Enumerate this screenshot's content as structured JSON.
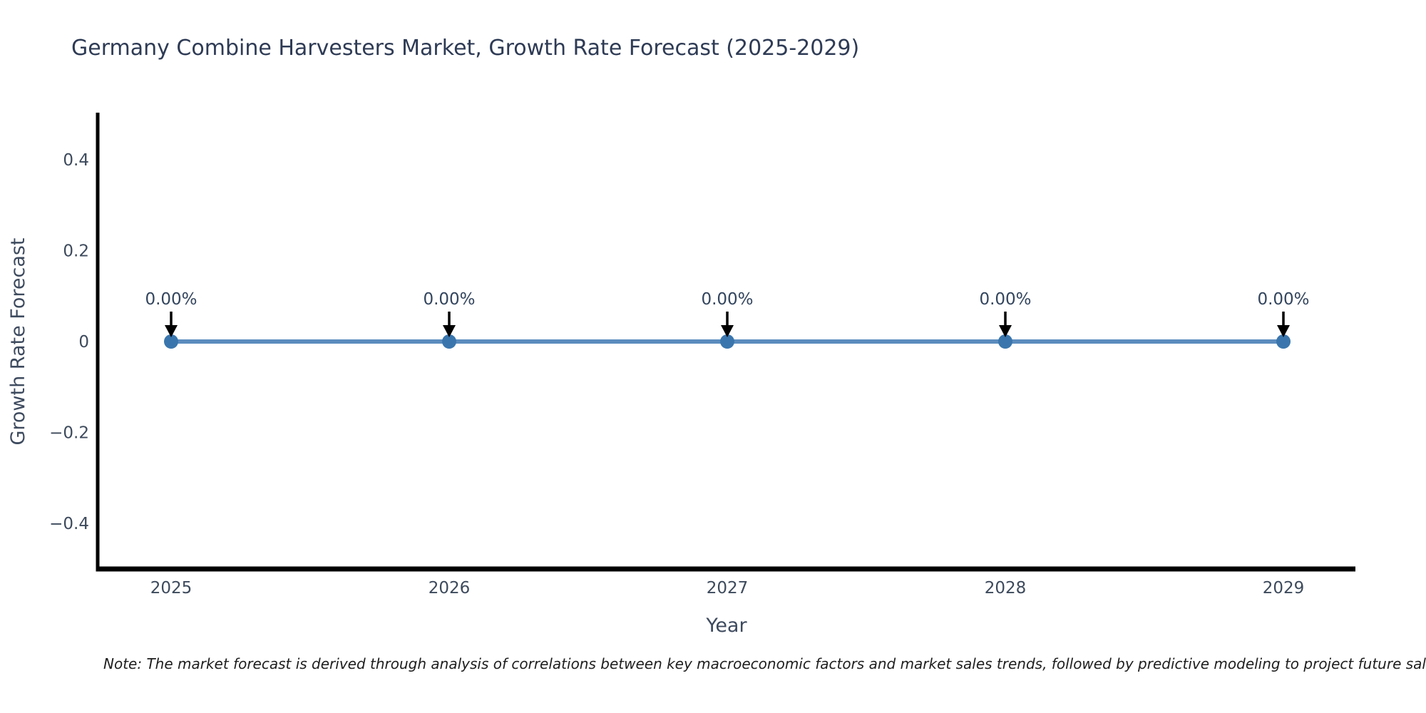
{
  "chart_data": {
    "type": "line",
    "title": "Germany Combine Harvesters Market, Growth Rate Forecast (2025-2029)",
    "xlabel": "Year",
    "ylabel": "Growth Rate Forecast",
    "x": [
      2025,
      2026,
      2027,
      2028,
      2029
    ],
    "series": [
      {
        "name": "Growth Rate Forecast",
        "values": [
          0,
          0,
          0,
          0,
          0
        ],
        "point_labels": [
          "0.00%",
          "0.00%",
          "0.00%",
          "0.00%",
          "0.00%"
        ]
      }
    ],
    "ylim": [
      -0.5,
      0.5
    ],
    "yticks": [
      0.4,
      0.2,
      0,
      -0.2,
      -0.4
    ],
    "ytick_labels": [
      "0.4",
      "0.2",
      "0",
      "−0.2",
      "−0.4"
    ],
    "grid": false,
    "legend": "none",
    "annotation_style": "down-arrow",
    "colors": {
      "line": "#5b8cbe",
      "marker": "#3a76ad",
      "arrow": "#000000",
      "axis": "#000000",
      "tick_text": "#3d4a5c",
      "title_text": "#2e3b55"
    }
  },
  "note": {
    "text": "Note: The market forecast is derived through analysis of correlations between key macroeconomic factors and market sales trends, followed by predictive modeling to project future sales"
  }
}
